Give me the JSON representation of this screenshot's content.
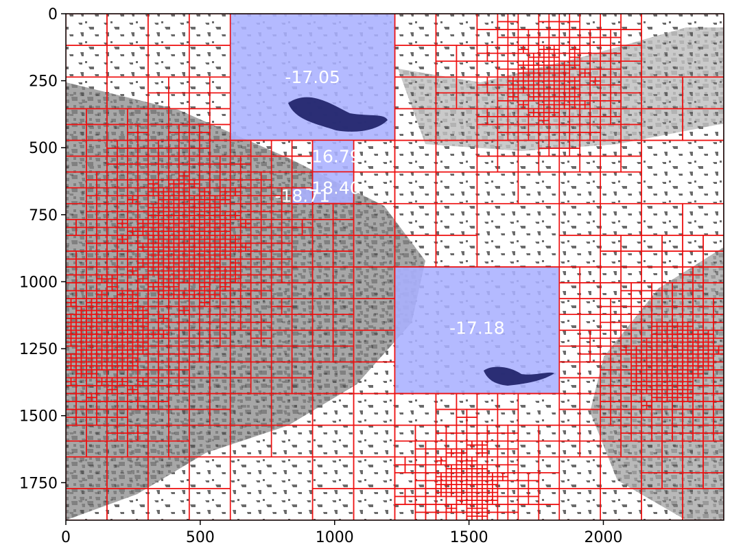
{
  "chart_data": {
    "type": "image-overlay",
    "description_visible": false,
    "x_range": [
      0,
      2448
    ],
    "y_range": [
      1890,
      0
    ],
    "x_ticks": [
      0,
      500,
      1000,
      1500,
      2000
    ],
    "y_ticks": [
      0,
      250,
      500,
      750,
      1000,
      1250,
      1500,
      1750
    ],
    "x_tick_labels": [
      "0",
      "500",
      "1000",
      "1500",
      "2000"
    ],
    "y_tick_labels": [
      "0",
      "250",
      "500",
      "750",
      "1000",
      "1250",
      "1500",
      "1750"
    ],
    "grid_color": "#ee1111",
    "highlight_color": "#aab0ff",
    "highlight_regions": [
      {
        "label": "-17.05",
        "x": 612,
        "y": 0,
        "w": 612,
        "h": 472
      },
      {
        "label": "-16.79",
        "x": 918,
        "y": 472,
        "w": 153,
        "h": 118
      },
      {
        "label": "-18.40",
        "x": 918,
        "y": 590,
        "w": 153,
        "h": 118
      },
      {
        "label": "-18.71",
        "x": 841,
        "y": 650,
        "w": 77,
        "h": 59
      },
      {
        "label": "-17.18",
        "x": 1224,
        "y": 945,
        "w": 612,
        "h": 472
      }
    ],
    "region_label_positions": [
      {
        "label": "-17.05",
        "x": 918,
        "y": 236
      },
      {
        "label": "-16.79",
        "x": 994,
        "y": 531
      },
      {
        "label": "-18.40",
        "x": 994,
        "y": 649
      },
      {
        "label": "-18.71",
        "x": 880,
        "y": 679
      },
      {
        "label": "-17.18",
        "x": 1530,
        "y": 1172
      }
    ]
  }
}
